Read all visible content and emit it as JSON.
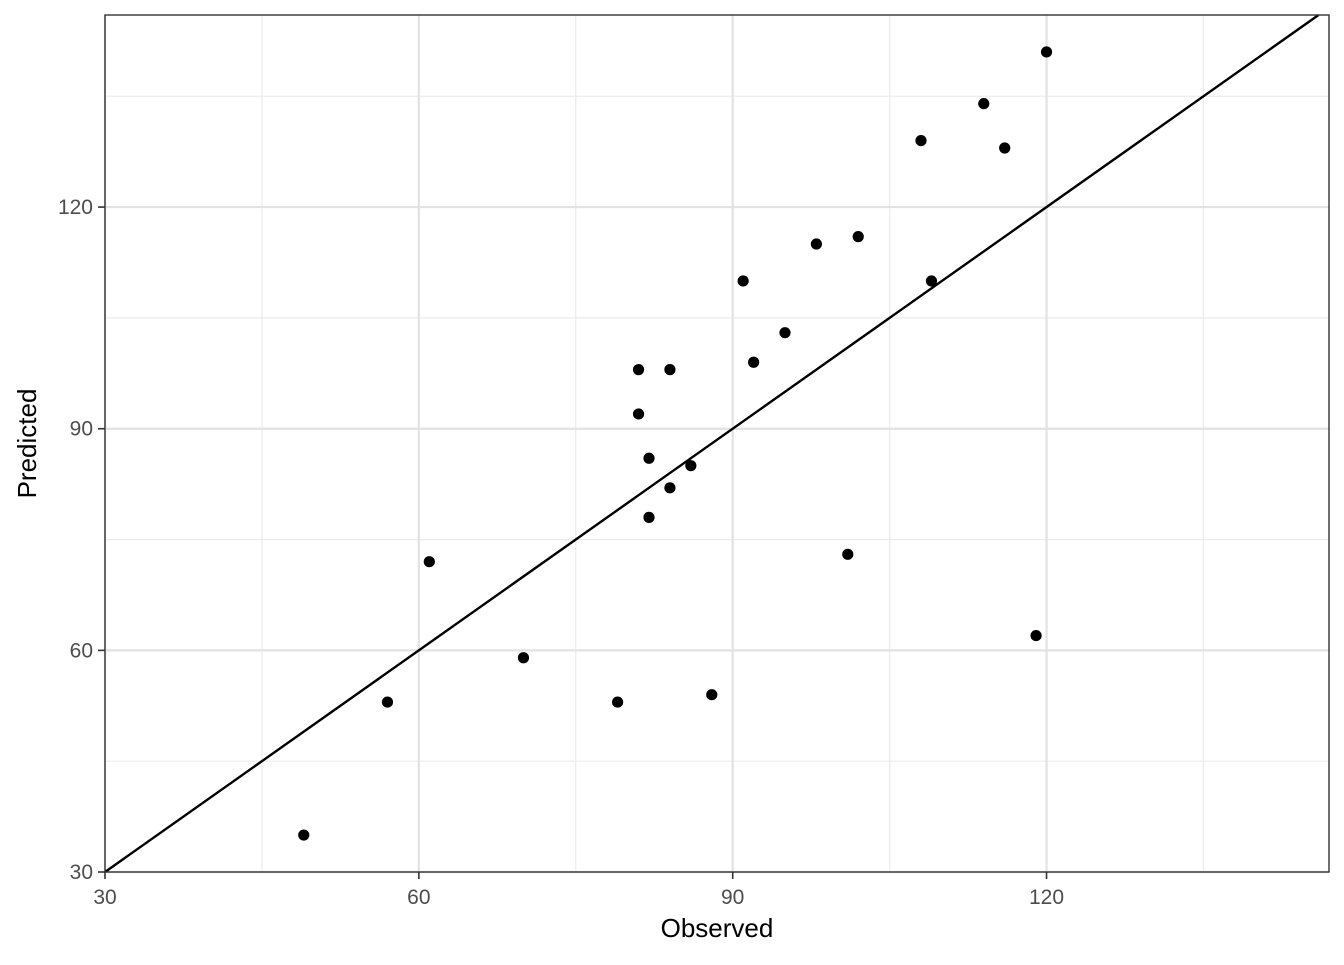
{
  "chart_data": {
    "type": "scatter",
    "title": "",
    "xlabel": "Observed",
    "ylabel": "Predicted",
    "xlim": [
      30,
      147
    ],
    "ylim": [
      30,
      146
    ],
    "xticks": [
      30,
      60,
      90,
      120
    ],
    "yticks": [
      30,
      60,
      90,
      120
    ],
    "x_tick_labels": [
      "30",
      "60",
      "90",
      "120"
    ],
    "y_tick_labels": [
      "30",
      "60",
      "90",
      "120"
    ],
    "grid": true,
    "reference_line": {
      "kind": "identity",
      "slope": 1,
      "intercept": 0
    },
    "point_color": "#000000",
    "points": [
      {
        "x": 49,
        "y": 35
      },
      {
        "x": 57,
        "y": 53
      },
      {
        "x": 61,
        "y": 72
      },
      {
        "x": 70,
        "y": 59
      },
      {
        "x": 79,
        "y": 53
      },
      {
        "x": 81,
        "y": 98
      },
      {
        "x": 81,
        "y": 92
      },
      {
        "x": 82,
        "y": 86
      },
      {
        "x": 82,
        "y": 78
      },
      {
        "x": 84,
        "y": 98
      },
      {
        "x": 84,
        "y": 82
      },
      {
        "x": 86,
        "y": 85
      },
      {
        "x": 88,
        "y": 54
      },
      {
        "x": 91,
        "y": 110
      },
      {
        "x": 92,
        "y": 99
      },
      {
        "x": 95,
        "y": 103
      },
      {
        "x": 98,
        "y": 115
      },
      {
        "x": 101,
        "y": 73
      },
      {
        "x": 102,
        "y": 116
      },
      {
        "x": 108,
        "y": 129
      },
      {
        "x": 109,
        "y": 110
      },
      {
        "x": 114,
        "y": 134
      },
      {
        "x": 116,
        "y": 128
      },
      {
        "x": 119,
        "y": 62
      },
      {
        "x": 120,
        "y": 141
      }
    ]
  }
}
